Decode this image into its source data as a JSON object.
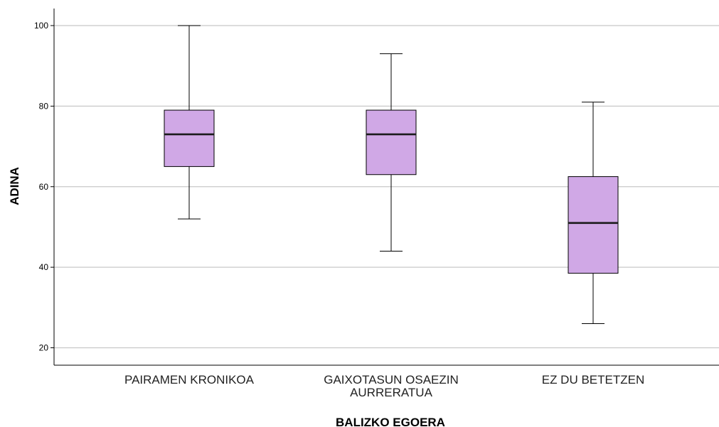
{
  "chart_data": {
    "type": "boxplot",
    "xlabel": "BALIZKO EGOERA",
    "ylabel": "ADINA",
    "ylim": [
      15,
      104
    ],
    "yticks": [
      20,
      40,
      60,
      80,
      100
    ],
    "yticklabels": [
      "20",
      "40",
      "60",
      "80",
      "100"
    ],
    "grid": true,
    "box_color": "#d0a8e6",
    "categories": [
      {
        "label_lines": [
          "PAIRAMEN KRONIKOA"
        ],
        "min": 52,
        "q1": 65,
        "median": 73,
        "q3": 79,
        "max": 100
      },
      {
        "label_lines": [
          "GAIXOTASUN OSAEZIN",
          "AURRERATUA"
        ],
        "min": 44,
        "q1": 63,
        "median": 73,
        "q3": 79,
        "max": 93
      },
      {
        "label_lines": [
          "EZ DU BETETZEN"
        ],
        "min": 26,
        "q1": 38.5,
        "median": 51,
        "q3": 62.5,
        "max": 81
      }
    ]
  }
}
